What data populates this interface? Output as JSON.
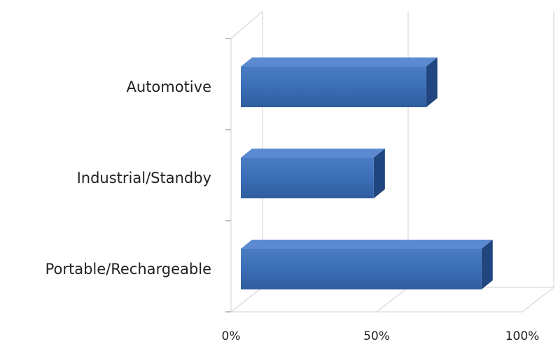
{
  "chart_data": {
    "type": "bar",
    "orientation": "horizontal",
    "style": "3d",
    "categories": [
      "Automotive",
      "Industrial/Standby",
      "Portable/Rechargeable"
    ],
    "values": [
      67,
      49,
      86
    ],
    "unit": "%",
    "xlim": [
      0,
      100
    ],
    "xticks": [
      {
        "value": 0,
        "label": "0%"
      },
      {
        "value": 50,
        "label": "50%"
      },
      {
        "value": 100,
        "label": "100%"
      }
    ],
    "title": "",
    "xlabel": "",
    "ylabel": "",
    "grid": true,
    "legend": "none",
    "colors": {
      "bar_front": "#3a6db5",
      "bar_top": "#5b8ad0",
      "bar_side": "#21467f",
      "grid": "#d9d9d9"
    }
  }
}
